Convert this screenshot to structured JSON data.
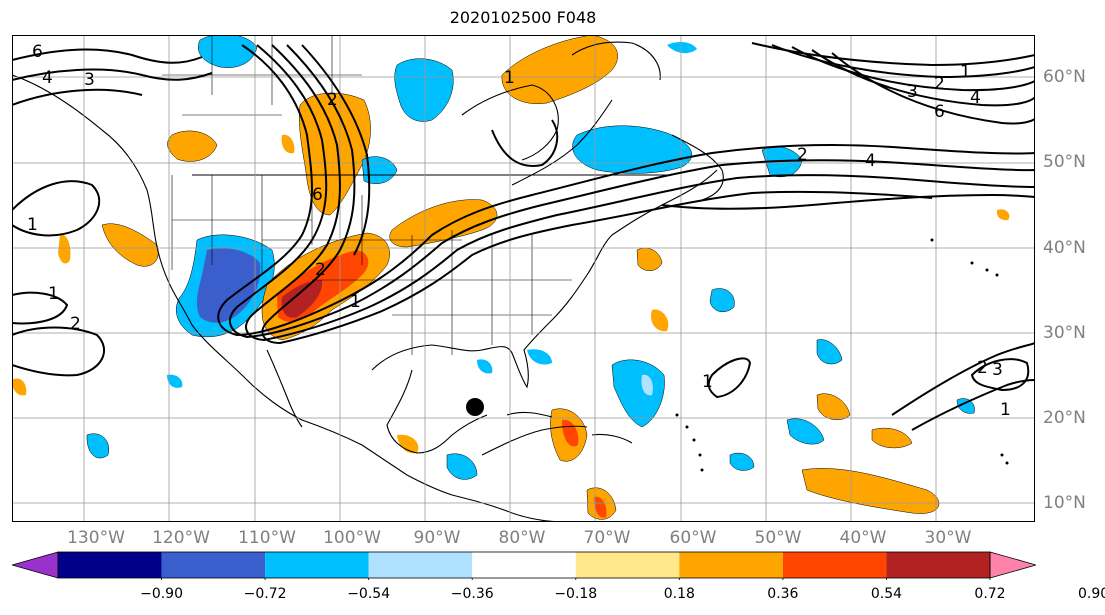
{
  "title": "2020102500 F048",
  "lat_labels": [
    "60°N",
    "50°N",
    "40°N",
    "30°N",
    "20°N",
    "10°N"
  ],
  "lon_labels": [
    "130°W",
    "120°W",
    "110°W",
    "100°W",
    "90°W",
    "80°W",
    "70°W",
    "60°W",
    "50°W",
    "40°W",
    "30°W"
  ],
  "contour_labels": [
    "6",
    "4",
    "3",
    "2",
    "1",
    "3",
    "2",
    "4",
    "6",
    "1",
    "2",
    "4",
    "6",
    "1",
    "1",
    "2",
    "2",
    "1",
    "2",
    "3",
    "1",
    "1"
  ],
  "colorbar": {
    "ticks": [
      "−0.90",
      "−0.72",
      "−0.54",
      "−0.36",
      "−0.18",
      "0.18",
      "0.36",
      "0.54",
      "0.72",
      "0.90"
    ],
    "colors": [
      "#9932cc",
      "#00008b",
      "#3a5fcd",
      "#00bfff",
      "#b0e2ff",
      "#ffffff",
      "#ffe78a",
      "#ffa500",
      "#ff4500",
      "#b22222",
      "#ff82ab"
    ]
  },
  "marker": "storm-center"
}
